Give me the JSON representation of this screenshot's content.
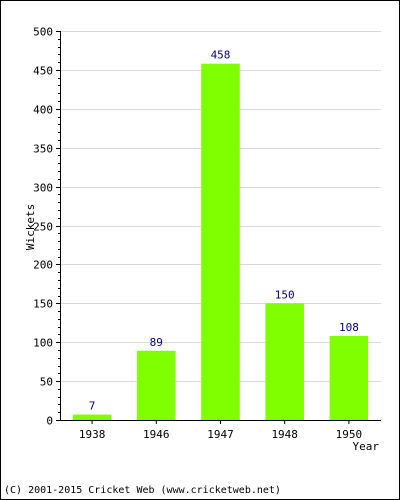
{
  "chart_data": {
    "type": "bar",
    "title": "",
    "xlabel": "Year",
    "ylabel": "Wickets",
    "categories": [
      "1938",
      "1946",
      "1947",
      "1948",
      "1950"
    ],
    "values": [
      7,
      89,
      458,
      150,
      108
    ],
    "data_labels": [
      "7",
      "89",
      "458",
      "150",
      "108"
    ],
    "ylim": [
      0,
      500
    ],
    "yticks": [
      0,
      50,
      100,
      150,
      200,
      250,
      300,
      350,
      400,
      450,
      500
    ],
    "grid": "horizontal",
    "colors": {
      "bar": "#7fff00",
      "label": "#000080",
      "grid": "#d9d9d9"
    }
  },
  "footer": {
    "copyright": "(C) 2001-2015 Cricket Web (www.cricketweb.net)"
  }
}
